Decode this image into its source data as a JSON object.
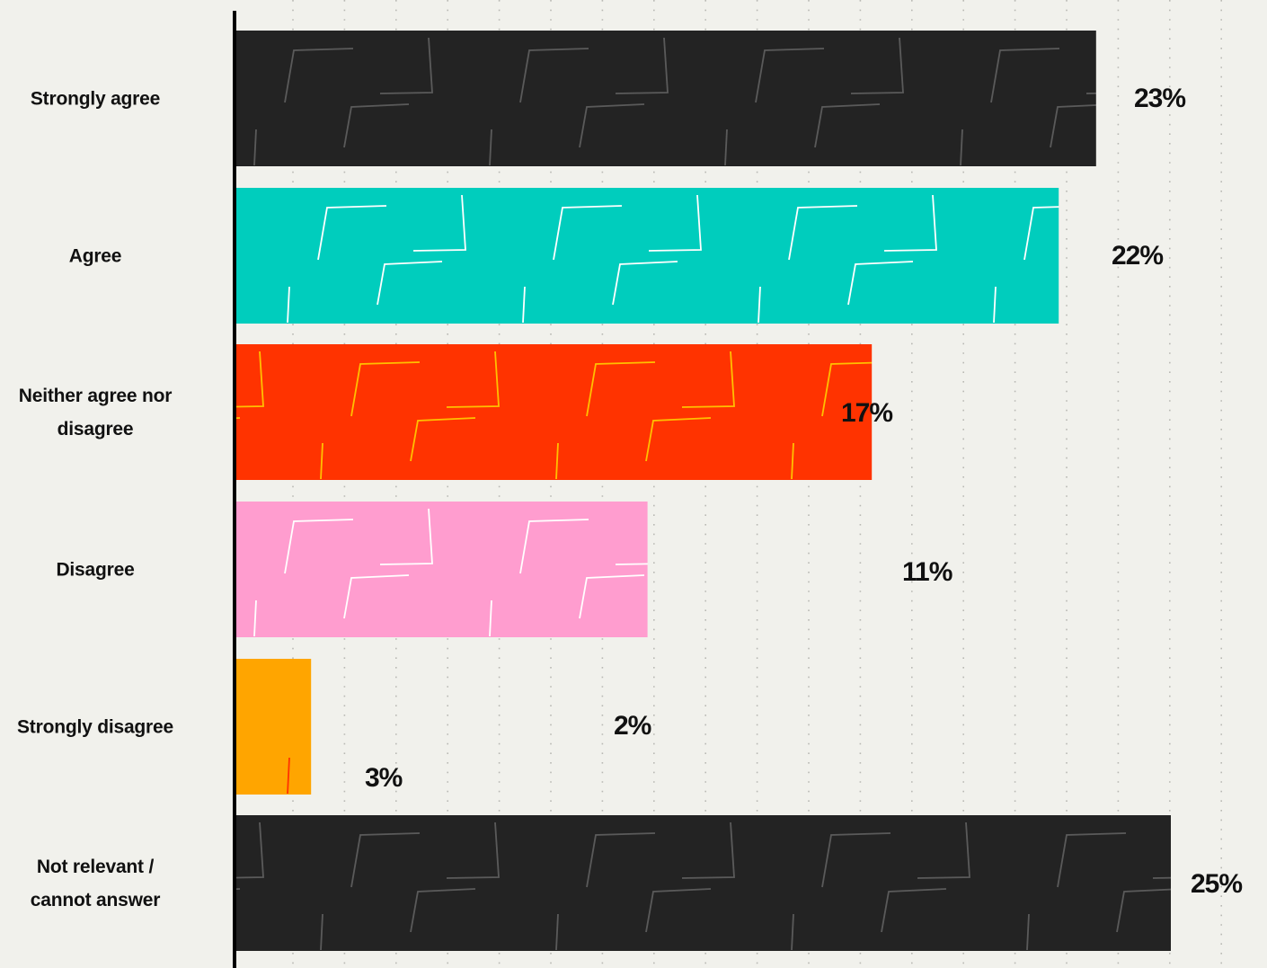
{
  "chart_data": {
    "type": "bar",
    "orientation": "horizontal",
    "categories": [
      "Strongly agree",
      "Agree",
      "Neither agree nor disagree",
      "Disagree",
      "Strongly disagree",
      "Not relevant / cannot answer"
    ],
    "category_lines": [
      [
        "Strongly agree"
      ],
      [
        "Agree"
      ],
      [
        "Neither agree nor",
        "disagree"
      ],
      [
        "Disagree"
      ],
      [
        "Strongly disagree"
      ],
      [
        "Not relevant /",
        "cannot answer"
      ]
    ],
    "values": [
      23,
      22,
      17,
      11,
      2,
      25
    ],
    "value_labels": [
      "23%",
      "22%",
      "17%",
      "11%",
      "2%",
      "25%"
    ],
    "extra_label": "3%",
    "bar_colors": [
      "#232323",
      "#00cdbd",
      "#ff3300",
      "#ff9dcf",
      "#ffa500",
      "#232323"
    ],
    "pattern_colors": [
      "#5a5a5a",
      "#ffffff",
      "#ffc000",
      "#ffffff",
      "#ff3300",
      "#5a5a5a"
    ],
    "grid": true,
    "xlabel": "",
    "ylabel": ""
  }
}
